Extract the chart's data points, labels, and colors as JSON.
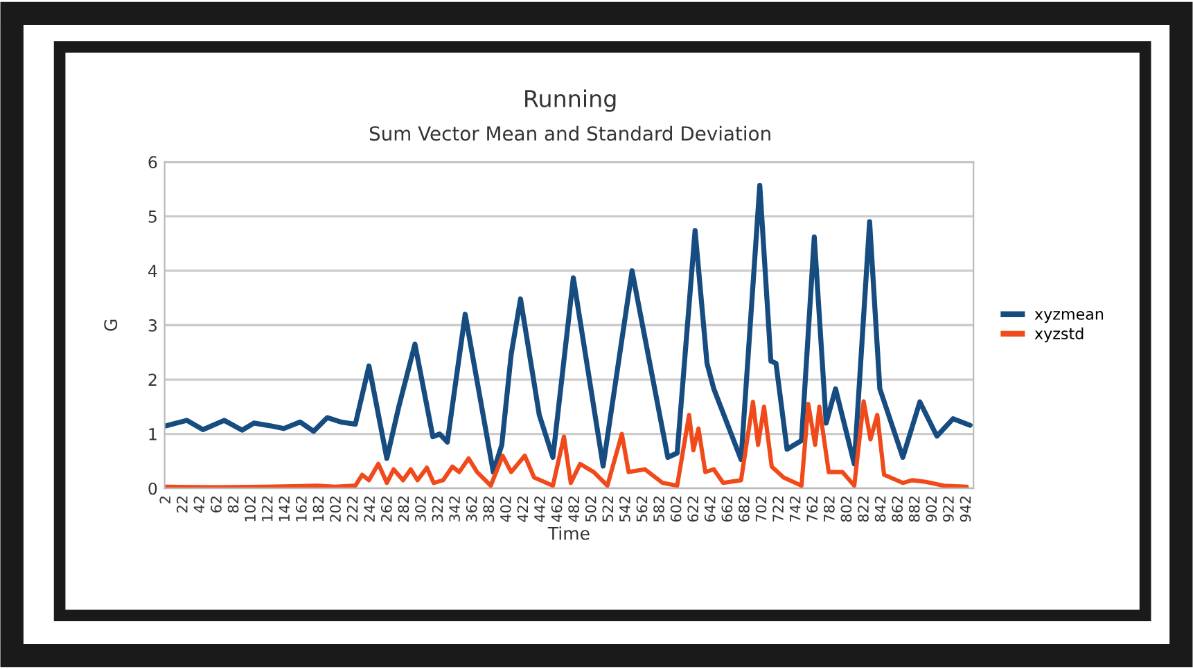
{
  "chart_data": {
    "type": "line",
    "title": "Running",
    "subtitle": "Sum Vector Mean and Standard Deviation",
    "xlabel": "Time",
    "ylabel": "G",
    "xlim": [
      0,
      950
    ],
    "ylim": [
      0,
      6
    ],
    "yticks": [
      0,
      1,
      2,
      3,
      4,
      5,
      6
    ],
    "xticks": [
      2,
      22,
      42,
      62,
      82,
      102,
      122,
      142,
      162,
      182,
      202,
      222,
      242,
      262,
      282,
      302,
      322,
      342,
      362,
      382,
      402,
      422,
      442,
      462,
      482,
      502,
      522,
      542,
      562,
      582,
      602,
      622,
      642,
      662,
      682,
      702,
      722,
      742,
      762,
      782,
      802,
      822,
      842,
      862,
      882,
      902,
      922,
      942
    ],
    "grid": "y",
    "legend": "right",
    "series": [
      {
        "name": "xyzmean",
        "color": "#164c80",
        "x": [
          2,
          26,
          45,
          70,
          91,
          105,
          124,
          140,
          159,
          175,
          191,
          207,
          224,
          240,
          261,
          275,
          294,
          315,
          323,
          332,
          353,
          386,
          396,
          407,
          418,
          440,
          456,
          480,
          515,
          549,
          591,
          602,
          623,
          637,
          645,
          677,
          699,
          712,
          718,
          731,
          748,
          763,
          777,
          788,
          810,
          828,
          840,
          867,
          887,
          907,
          926,
          946
        ],
        "values": [
          1.15,
          1.25,
          1.08,
          1.25,
          1.07,
          1.2,
          1.15,
          1.1,
          1.22,
          1.05,
          1.3,
          1.22,
          1.18,
          2.25,
          0.55,
          1.5,
          2.65,
          0.95,
          1.0,
          0.85,
          3.2,
          0.3,
          0.8,
          2.46,
          3.48,
          1.35,
          0.57,
          3.87,
          0.41,
          4.0,
          0.57,
          0.65,
          4.74,
          2.3,
          1.83,
          0.53,
          5.57,
          2.34,
          2.3,
          0.72,
          0.88,
          4.62,
          1.2,
          1.83,
          0.45,
          4.9,
          1.83,
          0.57,
          1.59,
          0.96,
          1.28,
          1.16
        ]
      },
      {
        "name": "xyzstd",
        "color": "#f04a1a",
        "x": [
          2,
          60,
          120,
          180,
          200,
          224,
          232,
          240,
          251,
          261,
          269,
          280,
          289,
          297,
          308,
          316,
          327,
          338,
          346,
          357,
          367,
          383,
          397,
          407,
          423,
          434,
          456,
          469,
          477,
          488,
          504,
          520,
          537,
          545,
          564,
          585,
          602,
          616,
          621,
          627,
          635,
          645,
          656,
          677,
          691,
          697,
          704,
          713,
          727,
          748,
          756,
          764,
          769,
          780,
          796,
          810,
          821,
          829,
          837,
          845,
          867,
          878,
          894,
          915,
          942
        ],
        "values": [
          0.03,
          0.02,
          0.03,
          0.05,
          0.03,
          0.05,
          0.25,
          0.15,
          0.45,
          0.1,
          0.35,
          0.15,
          0.35,
          0.15,
          0.38,
          0.1,
          0.15,
          0.4,
          0.3,
          0.55,
          0.3,
          0.05,
          0.6,
          0.3,
          0.6,
          0.2,
          0.05,
          0.95,
          0.1,
          0.45,
          0.3,
          0.05,
          1.0,
          0.3,
          0.35,
          0.1,
          0.05,
          1.35,
          0.7,
          1.1,
          0.3,
          0.35,
          0.1,
          0.15,
          1.59,
          0.8,
          1.5,
          0.4,
          0.2,
          0.05,
          1.55,
          0.8,
          1.5,
          0.3,
          0.3,
          0.05,
          1.6,
          0.9,
          1.35,
          0.25,
          0.1,
          0.15,
          0.12,
          0.05,
          0.03
        ]
      }
    ]
  }
}
